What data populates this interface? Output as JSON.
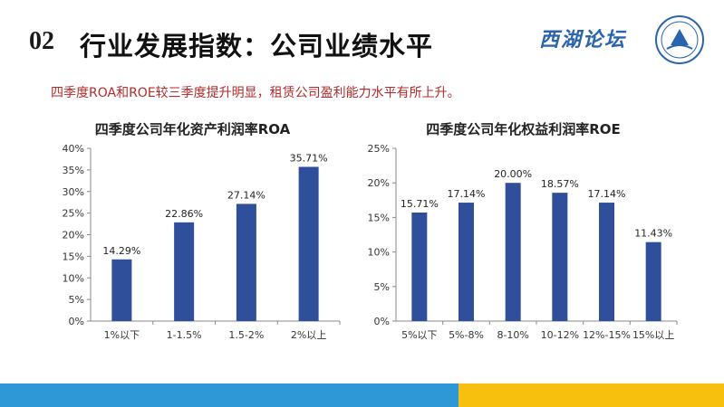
{
  "header": {
    "number": "02",
    "title": "行业发展指数：公司业绩水平",
    "brand": "西湖论坛"
  },
  "subtitle": "四季度ROA和ROE较三季度提升明显，租赁公司盈利能力水平有所上升。",
  "colors": {
    "bar": "#2f4f9a",
    "accent_blue": "#2e97d6",
    "accent_yellow": "#f7bf0e",
    "subtitle": "#b42a2a"
  },
  "chart_data": [
    {
      "type": "bar",
      "title": "四季度公司年化资产利润率ROA",
      "categories": [
        "1%以下",
        "1-1.5%",
        "1.5-2%",
        "2%以上"
      ],
      "values": [
        14.29,
        22.86,
        27.14,
        35.71
      ],
      "labels": [
        "14.29%",
        "22.86%",
        "27.14%",
        "35.71%"
      ],
      "yticks": [
        "0%",
        "5%",
        "10%",
        "15%",
        "20%",
        "25%",
        "30%",
        "35%",
        "40%"
      ],
      "ylim": [
        0,
        40
      ],
      "grid": false
    },
    {
      "type": "bar",
      "title": "四季度公司年化权益利润率ROE",
      "categories": [
        "5%以下",
        "5%-8%",
        "8-10%",
        "10-12%",
        "12%-15%",
        "15%以上"
      ],
      "values": [
        15.71,
        17.14,
        20.0,
        18.57,
        17.14,
        11.43
      ],
      "labels": [
        "15.71%",
        "17.14%",
        "20.00%",
        "18.57%",
        "17.14%",
        "11.43%"
      ],
      "yticks": [
        "0%",
        "5%",
        "10%",
        "15%",
        "20%",
        "25%"
      ],
      "ylim": [
        0,
        25
      ],
      "grid": false
    }
  ]
}
